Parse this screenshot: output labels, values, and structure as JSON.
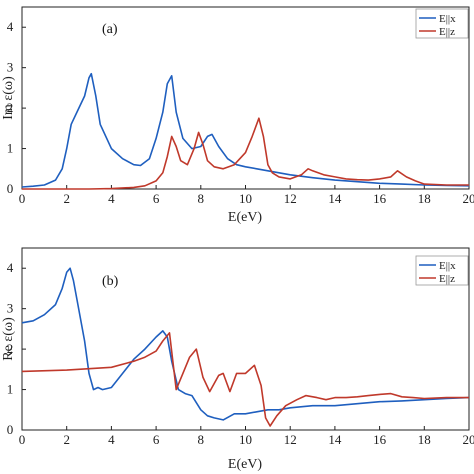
{
  "chart_data": [
    {
      "type": "line",
      "panel_label": "(a)",
      "xlabel": "E(eV)",
      "ylabel": "Im ε(ω)",
      "xlim": [
        0,
        20
      ],
      "ylim": [
        0,
        4.5
      ],
      "xticks": [
        0,
        2,
        4,
        6,
        8,
        10,
        12,
        14,
        16,
        18,
        20
      ],
      "yticks": [
        0,
        1,
        2,
        3,
        4
      ],
      "legend_position": "top-right",
      "series": [
        {
          "name": "E||x",
          "color": "#1f5fbf",
          "x": [
            0,
            0.5,
            1.0,
            1.5,
            1.8,
            2.0,
            2.2,
            2.5,
            2.8,
            3.0,
            3.1,
            3.3,
            3.5,
            4.0,
            4.5,
            5.0,
            5.3,
            5.7,
            6.0,
            6.3,
            6.5,
            6.7,
            6.9,
            7.2,
            7.6,
            8.0,
            8.3,
            8.5,
            8.8,
            9.2,
            9.6,
            10.0,
            10.5,
            11.0,
            12.0,
            13.0,
            14.0,
            15.0,
            16.0,
            17.0,
            18.0,
            19.0,
            20.0
          ],
          "values": [
            0.05,
            0.07,
            0.1,
            0.22,
            0.5,
            1.0,
            1.6,
            1.95,
            2.3,
            2.75,
            2.85,
            2.3,
            1.6,
            1.0,
            0.75,
            0.6,
            0.58,
            0.75,
            1.25,
            1.9,
            2.6,
            2.8,
            1.9,
            1.25,
            1.0,
            1.05,
            1.3,
            1.35,
            1.05,
            0.75,
            0.6,
            0.55,
            0.5,
            0.45,
            0.35,
            0.28,
            0.22,
            0.18,
            0.14,
            0.12,
            0.1,
            0.09,
            0.08
          ]
        },
        {
          "name": "E||z",
          "color": "#c0392b",
          "x": [
            0,
            1,
            2,
            3,
            4,
            5,
            5.5,
            6.0,
            6.3,
            6.5,
            6.7,
            6.9,
            7.1,
            7.4,
            7.7,
            7.9,
            8.1,
            8.3,
            8.6,
            9.0,
            9.5,
            10.0,
            10.3,
            10.6,
            10.8,
            11.0,
            11.2,
            11.5,
            12.0,
            12.5,
            12.8,
            13.0,
            13.5,
            14.0,
            14.5,
            15.0,
            15.5,
            16.0,
            16.5,
            16.8,
            17.2,
            17.6,
            18.0,
            19.0,
            20.0
          ],
          "values": [
            0.0,
            0.0,
            0.0,
            0.0,
            0.01,
            0.04,
            0.08,
            0.2,
            0.4,
            0.8,
            1.3,
            1.05,
            0.7,
            0.6,
            1.0,
            1.4,
            1.1,
            0.7,
            0.55,
            0.5,
            0.6,
            0.9,
            1.3,
            1.75,
            1.3,
            0.6,
            0.4,
            0.3,
            0.25,
            0.35,
            0.5,
            0.45,
            0.35,
            0.3,
            0.25,
            0.23,
            0.22,
            0.25,
            0.3,
            0.45,
            0.3,
            0.2,
            0.12,
            0.1,
            0.1
          ]
        }
      ]
    },
    {
      "type": "line",
      "panel_label": "(b)",
      "xlabel": "E(eV)",
      "ylabel": "Re ε(ω)",
      "xlim": [
        0,
        20
      ],
      "ylim": [
        0,
        4.5
      ],
      "xticks": [
        0,
        2,
        4,
        6,
        8,
        10,
        12,
        14,
        16,
        18,
        20
      ],
      "yticks": [
        0,
        1,
        2,
        3,
        4
      ],
      "legend_position": "top-right",
      "series": [
        {
          "name": "E||x",
          "color": "#1f5fbf",
          "x": [
            0,
            0.5,
            1.0,
            1.5,
            1.8,
            2.0,
            2.15,
            2.3,
            2.5,
            2.8,
            3.0,
            3.2,
            3.4,
            3.6,
            4.0,
            4.5,
            5.0,
            5.5,
            6.0,
            6.3,
            6.5,
            6.7,
            7.0,
            7.3,
            7.6,
            8.0,
            8.3,
            8.6,
            9.0,
            9.5,
            10.0,
            10.5,
            11.0,
            11.5,
            12.0,
            13.0,
            14.0,
            15.0,
            16.0,
            17.0,
            18.0,
            19.0,
            20.0
          ],
          "values": [
            2.65,
            2.7,
            2.85,
            3.1,
            3.5,
            3.9,
            4.0,
            3.7,
            3.1,
            2.2,
            1.4,
            1.0,
            1.05,
            1.0,
            1.05,
            1.4,
            1.75,
            2.0,
            2.3,
            2.45,
            2.3,
            1.7,
            1.0,
            0.9,
            0.85,
            0.5,
            0.35,
            0.3,
            0.25,
            0.4,
            0.4,
            0.45,
            0.5,
            0.5,
            0.55,
            0.6,
            0.6,
            0.65,
            0.7,
            0.72,
            0.75,
            0.78,
            0.8
          ]
        },
        {
          "name": "E||z",
          "color": "#c0392b",
          "x": [
            0,
            2,
            4,
            5,
            5.5,
            6.0,
            6.3,
            6.6,
            6.9,
            7.2,
            7.5,
            7.8,
            8.1,
            8.4,
            8.8,
            9.0,
            9.3,
            9.6,
            10.0,
            10.4,
            10.7,
            10.9,
            11.1,
            11.4,
            11.8,
            12.3,
            12.7,
            13.2,
            13.6,
            14.0,
            14.5,
            15.0,
            15.5,
            16.0,
            16.5,
            17.0,
            17.5,
            18.0,
            19.0,
            20.0
          ],
          "values": [
            1.45,
            1.48,
            1.55,
            1.7,
            1.8,
            1.95,
            2.2,
            2.4,
            1.0,
            1.4,
            1.8,
            2.0,
            1.3,
            0.95,
            1.35,
            1.4,
            0.95,
            1.4,
            1.4,
            1.6,
            1.1,
            0.3,
            0.1,
            0.35,
            0.6,
            0.75,
            0.85,
            0.8,
            0.75,
            0.8,
            0.8,
            0.82,
            0.85,
            0.88,
            0.9,
            0.82,
            0.8,
            0.78,
            0.8,
            0.8
          ]
        }
      ]
    }
  ]
}
